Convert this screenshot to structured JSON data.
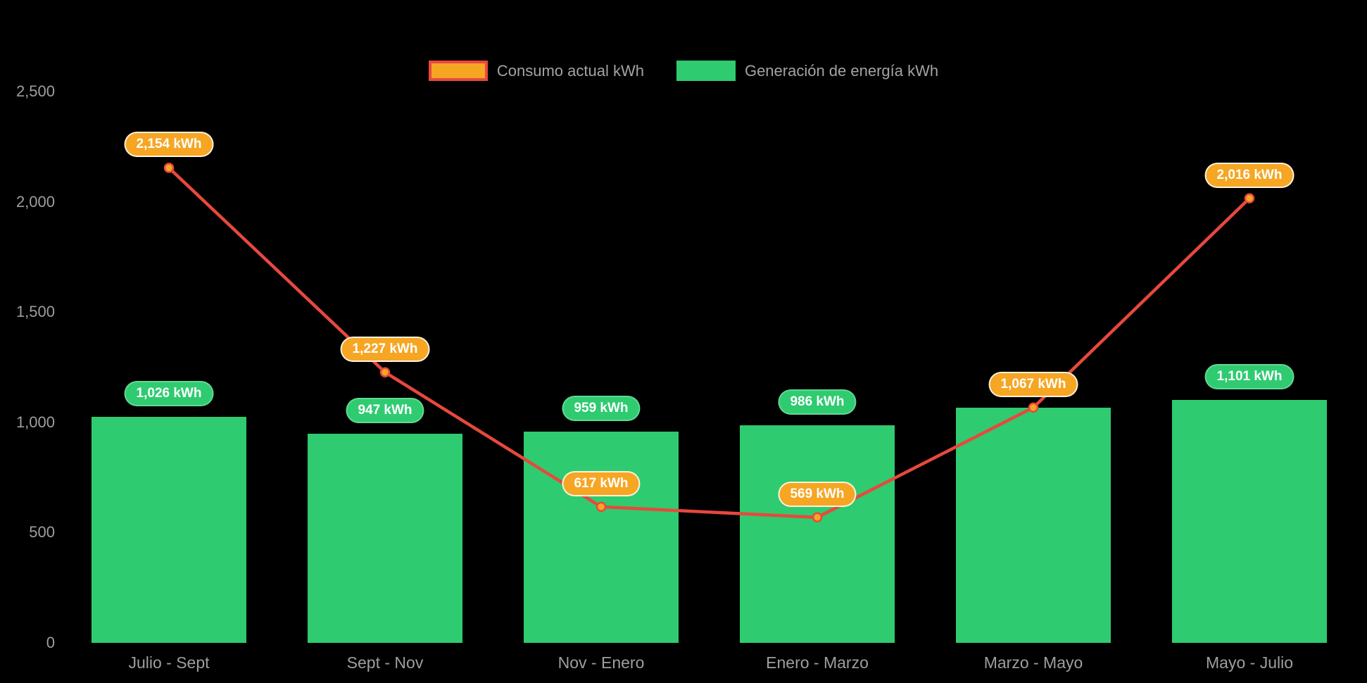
{
  "background_color": "#000000",
  "colors": {
    "bar_green": "#2FCB70",
    "line_red": "#E8483D",
    "point_and_badge_orange": "#F6A623",
    "axis_text_gray": "#9E9E9E",
    "legend_text_gray": "#A3A3A3",
    "badge_text": "#FFFFFF"
  },
  "legend": {
    "items": [
      {
        "label": "Consumo actual kWh",
        "swatch_fill": "#F6A623",
        "swatch_border": "#E8483D"
      },
      {
        "label": "Generación de energía kWh",
        "swatch_fill": "#2FCB70",
        "swatch_border": "#2FCB70"
      }
    ]
  },
  "chart_data": {
    "type": "bar+line combo",
    "title": "",
    "xlabel": "",
    "ylabel": "",
    "grid": "off",
    "legend_position": "top-center",
    "categories": [
      "Julio - Sept",
      "Sept - Nov",
      "Nov - Enero",
      "Enero - Marzo",
      "Marzo - Mayo",
      "Mayo - Julio"
    ],
    "series": [
      {
        "name": "Consumo actual kWh",
        "type": "line",
        "color": "#E8483D",
        "point_fill": "#F6A623",
        "values": [
          2154,
          1227,
          617,
          569,
          1067,
          2016
        ],
        "labels": [
          "2,154 kWh",
          "1,227 kWh",
          "617 kWh",
          "569 kWh",
          "1,067 kWh",
          "2,016 kWh"
        ]
      },
      {
        "name": "Generación de energía kWh",
        "type": "bar",
        "color": "#2FCB70",
        "values": [
          1026,
          947,
          959,
          986,
          1067,
          1101
        ],
        "labels": [
          "1,026 kWh",
          "947 kWh",
          "959 kWh",
          "986 kWh",
          null,
          "1,101 kWh"
        ],
        "note": "label for Marzo - Mayo bar is hidden behind the 1,067 kWh line badge"
      }
    ],
    "y_axis": {
      "range": [
        0,
        2500
      ],
      "ticks": [
        0,
        500,
        1000,
        1500,
        2000,
        2500
      ],
      "tick_labels": [
        "0",
        "500",
        "1,000",
        "1,500",
        "2,000",
        "2,500"
      ]
    }
  }
}
